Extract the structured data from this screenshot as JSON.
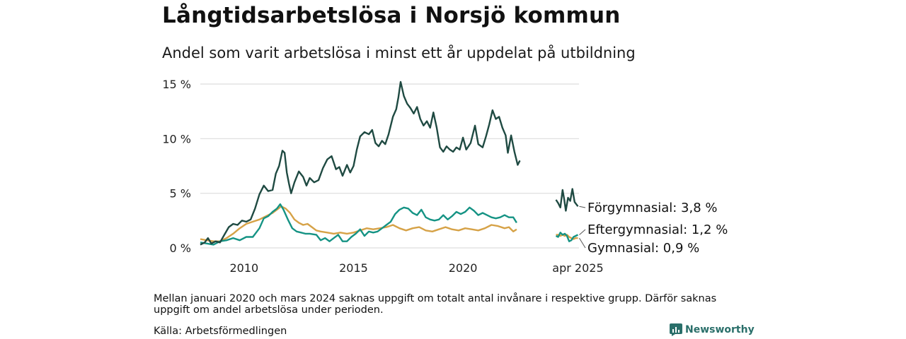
{
  "title": "Långtidsarbetslösa i Norsjö kommun",
  "subtitle": "Andel som varit arbetslösa i minst ett år uppdelat på utbildning",
  "note": "Mellan januari 2020 och mars 2024 saknas uppgift om totalt antal invånare i respektive grupp. Därför saknas uppgift om andel arbetslösa under perioden.",
  "source": "Källa: Arbetsförmedlingen",
  "brand": "Newsworthy",
  "colors": {
    "forgymnasial": "#1f4a42",
    "eftergymnasial": "#159384",
    "gymnasial": "#d6a247",
    "grid": "#dddddd",
    "brand": "#2a6f6a"
  },
  "chart_data": {
    "type": "line",
    "ylim": [
      0,
      15
    ],
    "yticks": [
      0,
      5,
      10,
      15
    ],
    "ytick_labels": [
      "0 %",
      "5 %",
      "10 %",
      "15 %"
    ],
    "xlim": [
      2008.0,
      2025.3
    ],
    "xticks": [
      2010,
      2015,
      2020,
      2025.25
    ],
    "xtick_labels": [
      "2010",
      "2015",
      "2020",
      "apr 2025"
    ],
    "gap": [
      2021.0,
      2024.25
    ],
    "series": [
      {
        "key": "forgymnasial",
        "end_label": "Förgymnasial: 3,8 %",
        "points": [
          [
            2008.0,
            0.3
          ],
          [
            2008.2,
            0.5
          ],
          [
            2008.35,
            0.9
          ],
          [
            2008.5,
            0.4
          ],
          [
            2008.7,
            0.6
          ],
          [
            2008.9,
            0.5
          ],
          [
            2009.1,
            1.2
          ],
          [
            2009.3,
            1.9
          ],
          [
            2009.5,
            2.2
          ],
          [
            2009.7,
            2.1
          ],
          [
            2009.9,
            2.5
          ],
          [
            2010.1,
            2.4
          ],
          [
            2010.3,
            2.6
          ],
          [
            2010.5,
            3.6
          ],
          [
            2010.7,
            4.9
          ],
          [
            2010.9,
            5.7
          ],
          [
            2011.1,
            5.2
          ],
          [
            2011.3,
            5.3
          ],
          [
            2011.45,
            6.8
          ],
          [
            2011.6,
            7.5
          ],
          [
            2011.75,
            8.9
          ],
          [
            2011.85,
            8.7
          ],
          [
            2011.95,
            6.9
          ],
          [
            2012.05,
            5.9
          ],
          [
            2012.15,
            5.0
          ],
          [
            2012.3,
            6.0
          ],
          [
            2012.5,
            7.0
          ],
          [
            2012.7,
            6.5
          ],
          [
            2012.85,
            5.7
          ],
          [
            2013.0,
            6.4
          ],
          [
            2013.2,
            6.0
          ],
          [
            2013.4,
            6.2
          ],
          [
            2013.6,
            7.3
          ],
          [
            2013.8,
            8.1
          ],
          [
            2014.0,
            8.4
          ],
          [
            2014.2,
            7.2
          ],
          [
            2014.35,
            7.4
          ],
          [
            2014.5,
            6.6
          ],
          [
            2014.7,
            7.6
          ],
          [
            2014.85,
            6.9
          ],
          [
            2015.0,
            7.5
          ],
          [
            2015.15,
            9.0
          ],
          [
            2015.3,
            10.2
          ],
          [
            2015.5,
            10.6
          ],
          [
            2015.7,
            10.4
          ],
          [
            2015.85,
            10.8
          ],
          [
            2016.0,
            9.6
          ],
          [
            2016.15,
            9.3
          ],
          [
            2016.3,
            9.8
          ],
          [
            2016.45,
            9.5
          ],
          [
            2016.6,
            10.4
          ],
          [
            2016.8,
            12.0
          ],
          [
            2016.95,
            12.7
          ],
          [
            2017.05,
            13.8
          ],
          [
            2017.15,
            15.2
          ],
          [
            2017.3,
            13.9
          ],
          [
            2017.45,
            13.2
          ],
          [
            2017.6,
            12.8
          ],
          [
            2017.75,
            12.3
          ],
          [
            2017.9,
            12.9
          ],
          [
            2018.05,
            11.8
          ],
          [
            2018.2,
            11.2
          ],
          [
            2018.35,
            11.6
          ],
          [
            2018.5,
            11.0
          ],
          [
            2018.65,
            12.4
          ],
          [
            2018.8,
            11.0
          ],
          [
            2018.95,
            9.2
          ],
          [
            2019.1,
            8.8
          ],
          [
            2019.25,
            9.3
          ],
          [
            2019.4,
            9.0
          ],
          [
            2019.55,
            8.8
          ],
          [
            2019.7,
            9.2
          ],
          [
            2019.85,
            9.0
          ],
          [
            2020.0,
            10.1
          ],
          [
            2020.15,
            9.0
          ],
          [
            2020.35,
            9.6
          ],
          [
            2020.55,
            11.2
          ],
          [
            2020.7,
            9.5
          ],
          [
            2020.9,
            9.2
          ],
          [
            2021.05,
            10.2
          ],
          [
            2021.2,
            11.3
          ],
          [
            2021.35,
            12.6
          ],
          [
            2021.5,
            11.8
          ],
          [
            2021.65,
            12.0
          ],
          [
            2021.8,
            11.0
          ],
          [
            2021.95,
            10.3
          ],
          [
            2022.05,
            8.7
          ],
          [
            2022.2,
            10.3
          ],
          [
            2022.35,
            8.8
          ],
          [
            2022.5,
            7.6
          ],
          [
            2022.6,
            8.0
          ]
        ]
      },
      {
        "key": "eftergymnasial",
        "end_label": "Eftergymnasial: 1,2 %",
        "points": [
          [
            2008.0,
            0.5
          ],
          [
            2008.3,
            0.4
          ],
          [
            2008.6,
            0.3
          ],
          [
            2008.9,
            0.6
          ],
          [
            2009.2,
            0.7
          ],
          [
            2009.5,
            0.9
          ],
          [
            2009.8,
            0.7
          ],
          [
            2010.1,
            1.0
          ],
          [
            2010.4,
            1.0
          ],
          [
            2010.7,
            1.8
          ],
          [
            2010.9,
            2.7
          ],
          [
            2011.1,
            2.9
          ],
          [
            2011.3,
            3.3
          ],
          [
            2011.5,
            3.6
          ],
          [
            2011.65,
            4.0
          ],
          [
            2011.8,
            3.5
          ],
          [
            2012.0,
            2.6
          ],
          [
            2012.2,
            1.8
          ],
          [
            2012.4,
            1.5
          ],
          [
            2012.6,
            1.4
          ],
          [
            2012.8,
            1.3
          ],
          [
            2013.0,
            1.3
          ],
          [
            2013.3,
            1.2
          ],
          [
            2013.5,
            0.7
          ],
          [
            2013.7,
            0.9
          ],
          [
            2013.9,
            0.6
          ],
          [
            2014.1,
            0.9
          ],
          [
            2014.3,
            1.2
          ],
          [
            2014.5,
            0.6
          ],
          [
            2014.7,
            0.6
          ],
          [
            2014.9,
            1.0
          ],
          [
            2015.1,
            1.3
          ],
          [
            2015.3,
            1.7
          ],
          [
            2015.5,
            1.1
          ],
          [
            2015.7,
            1.5
          ],
          [
            2015.9,
            1.4
          ],
          [
            2016.1,
            1.5
          ],
          [
            2016.3,
            1.8
          ],
          [
            2016.5,
            2.1
          ],
          [
            2016.7,
            2.4
          ],
          [
            2016.9,
            3.1
          ],
          [
            2017.1,
            3.5
          ],
          [
            2017.3,
            3.7
          ],
          [
            2017.5,
            3.6
          ],
          [
            2017.7,
            3.2
          ],
          [
            2017.9,
            3.0
          ],
          [
            2018.1,
            3.5
          ],
          [
            2018.3,
            2.8
          ],
          [
            2018.5,
            2.6
          ],
          [
            2018.7,
            2.5
          ],
          [
            2018.9,
            2.6
          ],
          [
            2019.1,
            3.0
          ],
          [
            2019.3,
            2.6
          ],
          [
            2019.5,
            2.9
          ],
          [
            2019.7,
            3.3
          ],
          [
            2019.9,
            3.1
          ],
          [
            2020.1,
            3.3
          ],
          [
            2020.3,
            3.7
          ],
          [
            2020.5,
            3.4
          ],
          [
            2020.7,
            3.0
          ],
          [
            2020.9,
            3.2
          ],
          [
            2021.1,
            3.0
          ],
          [
            2021.3,
            2.8
          ],
          [
            2021.5,
            2.7
          ],
          [
            2021.7,
            2.8
          ],
          [
            2021.9,
            3.0
          ],
          [
            2022.1,
            2.8
          ],
          [
            2022.3,
            2.8
          ],
          [
            2022.45,
            2.3
          ]
        ]
      },
      {
        "key": "gymnasial",
        "end_label": "Gymnasial: 0,9 %",
        "points": [
          [
            2008.0,
            0.8
          ],
          [
            2008.3,
            0.7
          ],
          [
            2008.6,
            0.6
          ],
          [
            2008.9,
            0.6
          ],
          [
            2009.2,
            0.9
          ],
          [
            2009.5,
            1.3
          ],
          [
            2009.8,
            1.8
          ],
          [
            2010.1,
            2.2
          ],
          [
            2010.4,
            2.4
          ],
          [
            2010.7,
            2.6
          ],
          [
            2010.9,
            2.8
          ],
          [
            2011.1,
            3.0
          ],
          [
            2011.3,
            3.2
          ],
          [
            2011.5,
            3.5
          ],
          [
            2011.7,
            3.8
          ],
          [
            2011.9,
            3.6
          ],
          [
            2012.1,
            3.2
          ],
          [
            2012.3,
            2.6
          ],
          [
            2012.5,
            2.3
          ],
          [
            2012.7,
            2.1
          ],
          [
            2012.9,
            2.2
          ],
          [
            2013.1,
            1.9
          ],
          [
            2013.3,
            1.6
          ],
          [
            2013.5,
            1.5
          ],
          [
            2013.8,
            1.4
          ],
          [
            2014.1,
            1.3
          ],
          [
            2014.4,
            1.4
          ],
          [
            2014.7,
            1.3
          ],
          [
            2015.0,
            1.4
          ],
          [
            2015.3,
            1.6
          ],
          [
            2015.6,
            1.8
          ],
          [
            2015.9,
            1.7
          ],
          [
            2016.2,
            1.8
          ],
          [
            2016.5,
            1.9
          ],
          [
            2016.8,
            2.1
          ],
          [
            2017.1,
            1.8
          ],
          [
            2017.4,
            1.6
          ],
          [
            2017.7,
            1.8
          ],
          [
            2018.0,
            1.9
          ],
          [
            2018.3,
            1.6
          ],
          [
            2018.6,
            1.5
          ],
          [
            2018.9,
            1.7
          ],
          [
            2019.2,
            1.9
          ],
          [
            2019.5,
            1.7
          ],
          [
            2019.8,
            1.6
          ],
          [
            2020.1,
            1.8
          ],
          [
            2020.4,
            1.7
          ],
          [
            2020.7,
            1.6
          ],
          [
            2021.0,
            1.8
          ],
          [
            2021.3,
            2.1
          ],
          [
            2021.6,
            2.0
          ],
          [
            2021.9,
            1.8
          ],
          [
            2022.1,
            1.9
          ],
          [
            2022.3,
            1.5
          ],
          [
            2022.45,
            1.7
          ]
        ]
      }
    ],
    "recent": [
      {
        "key": "forgymnasial",
        "points": [
          [
            2024.25,
            4.4
          ],
          [
            2024.35,
            4.1
          ],
          [
            2024.45,
            3.7
          ],
          [
            2024.55,
            5.3
          ],
          [
            2024.62,
            4.5
          ],
          [
            2024.7,
            3.4
          ],
          [
            2024.8,
            4.6
          ],
          [
            2024.9,
            4.3
          ],
          [
            2025.0,
            5.4
          ],
          [
            2025.1,
            4.2
          ],
          [
            2025.25,
            3.8
          ]
        ]
      },
      {
        "key": "eftergymnasial",
        "points": [
          [
            2024.25,
            1.1
          ],
          [
            2024.35,
            1.0
          ],
          [
            2024.45,
            1.4
          ],
          [
            2024.55,
            1.2
          ],
          [
            2024.65,
            1.3
          ],
          [
            2024.75,
            1.1
          ],
          [
            2024.85,
            0.6
          ],
          [
            2024.95,
            0.7
          ],
          [
            2025.05,
            1.0
          ],
          [
            2025.15,
            1.1
          ],
          [
            2025.25,
            1.2
          ]
        ]
      },
      {
        "key": "gymnasial",
        "points": [
          [
            2024.25,
            1.2
          ],
          [
            2024.35,
            1.2
          ],
          [
            2024.45,
            1.1
          ],
          [
            2024.55,
            1.2
          ],
          [
            2024.65,
            1.1
          ],
          [
            2024.75,
            1.2
          ],
          [
            2024.85,
            1.0
          ],
          [
            2024.95,
            0.9
          ],
          [
            2025.05,
            0.8
          ],
          [
            2025.15,
            0.9
          ],
          [
            2025.25,
            0.9
          ]
        ]
      }
    ]
  }
}
